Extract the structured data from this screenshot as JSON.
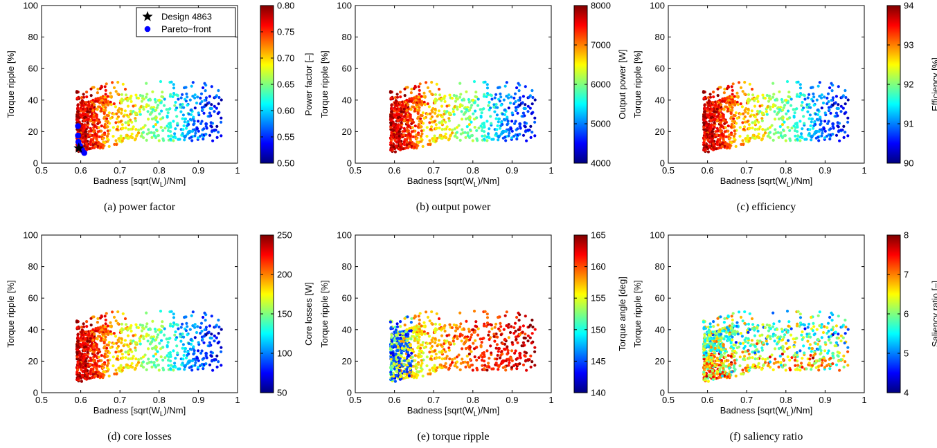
{
  "chart_data": [
    {
      "type": "scatter",
      "caption": "(a) power factor",
      "xlabel": "Badness [sqrt(W_L)/Nm]",
      "ylabel": "Torque ripple [%]",
      "xlim": [
        0.5,
        1
      ],
      "ylim": [
        0,
        100
      ],
      "xticks": [
        "0.5",
        "0.6",
        "0.7",
        "0.8",
        "0.9",
        "1"
      ],
      "yticks": [
        "0",
        "20",
        "40",
        "60",
        "80",
        "100"
      ],
      "colorbar": {
        "label": "Power factor [–]",
        "min": 0.5,
        "max": 0.8,
        "ticks": [
          "0.50",
          "0.55",
          "0.60",
          "0.65",
          "0.70",
          "0.75",
          "0.80"
        ]
      },
      "color_trend": "decreasing_with_x",
      "legend": {
        "placement": "top-right",
        "entries": [
          {
            "label": "Design 4863",
            "marker": "star",
            "color": "#000000"
          },
          {
            "label": "Pareto−front",
            "marker": "circle",
            "color": "#0000ff"
          }
        ]
      },
      "highlight": {
        "design": {
          "x": 0.595,
          "y": 9.5
        },
        "pareto_front": [
          {
            "x": 0.593,
            "y": 23.5
          },
          {
            "x": 0.593,
            "y": 17.5
          },
          {
            "x": 0.594,
            "y": 13.5
          },
          {
            "x": 0.598,
            "y": 11
          },
          {
            "x": 0.603,
            "y": 8.5
          },
          {
            "x": 0.609,
            "y": 6.5
          }
        ]
      }
    },
    {
      "type": "scatter",
      "caption": "(b) output power",
      "xlabel": "Badness [sqrt(W_L)/Nm]",
      "ylabel": "Torque ripple [%]",
      "xlim": [
        0.5,
        1
      ],
      "ylim": [
        0,
        100
      ],
      "xticks": [
        "0.5",
        "0.6",
        "0.7",
        "0.8",
        "0.9",
        "1"
      ],
      "yticks": [
        "0",
        "20",
        "40",
        "60",
        "80",
        "100"
      ],
      "colorbar": {
        "label": "Output power [W]",
        "min": 4000,
        "max": 8000,
        "ticks": [
          "4000",
          "5000",
          "6000",
          "7000",
          "8000"
        ]
      },
      "color_trend": "decreasing_with_x"
    },
    {
      "type": "scatter",
      "caption": "(c) efficiency",
      "xlabel": "Badness [sqrt(W_L)/Nm]",
      "ylabel": "Torque ripple [%]",
      "xlim": [
        0.5,
        1
      ],
      "ylim": [
        0,
        100
      ],
      "xticks": [
        "0.5",
        "0.6",
        "0.7",
        "0.8",
        "0.9",
        "1"
      ],
      "yticks": [
        "0",
        "20",
        "40",
        "60",
        "80",
        "100"
      ],
      "colorbar": {
        "label": "Efficiency [%]",
        "min": 90,
        "max": 94,
        "ticks": [
          "90",
          "91",
          "92",
          "93",
          "94"
        ]
      },
      "color_trend": "decreasing_with_x"
    },
    {
      "type": "scatter",
      "caption": "(d) core losses",
      "xlabel": "Badness [sqrt(W_L)/Nm]",
      "ylabel": "Torque ripple [%]",
      "xlim": [
        0.5,
        1
      ],
      "ylim": [
        0,
        100
      ],
      "xticks": [
        "0.5",
        "0.6",
        "0.7",
        "0.8",
        "0.9",
        "1"
      ],
      "yticks": [
        "0",
        "20",
        "40",
        "60",
        "80",
        "100"
      ],
      "colorbar": {
        "label": "Core losses [W]",
        "min": 50,
        "max": 250,
        "ticks": [
          "50",
          "100",
          "150",
          "200",
          "250"
        ]
      },
      "color_trend": "decreasing_with_x"
    },
    {
      "type": "scatter",
      "caption": "(e) torque ripple",
      "xlabel": "Badness [sqrt(W_L)/Nm]",
      "ylabel": "Torque ripple [%]",
      "xlim": [
        0.5,
        1
      ],
      "ylim": [
        0,
        100
      ],
      "xticks": [
        "0.5",
        "0.6",
        "0.7",
        "0.8",
        "0.9",
        "1"
      ],
      "yticks": [
        "0",
        "20",
        "40",
        "60",
        "80",
        "100"
      ],
      "colorbar": {
        "label": "Torque angle [deg]",
        "min": 140,
        "max": 165,
        "ticks": [
          "140",
          "145",
          "150",
          "155",
          "160",
          "165"
        ]
      },
      "color_trend": "increasing_with_x"
    },
    {
      "type": "scatter",
      "caption": "(f) saliency ratio",
      "xlabel": "Badness [sqrt(W_L)/Nm]",
      "ylabel": "Torque ripple [%]",
      "xlim": [
        0.5,
        1
      ],
      "ylim": [
        0,
        100
      ],
      "xticks": [
        "0.5",
        "0.6",
        "0.7",
        "0.8",
        "0.9",
        "1"
      ],
      "yticks": [
        "0",
        "20",
        "40",
        "60",
        "80",
        "100"
      ],
      "colorbar": {
        "label": "Saliency ratio [–]",
        "min": 4,
        "max": 8,
        "ticks": [
          "4",
          "5",
          "6",
          "7",
          "8"
        ]
      },
      "color_trend": "mixed"
    }
  ]
}
